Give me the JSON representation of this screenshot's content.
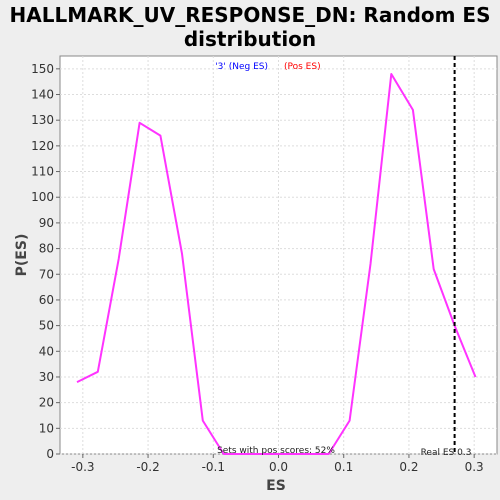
{
  "chart_data": {
    "type": "line",
    "title_line1": "HALLMARK_UV_RESPONSE_DN: Random ES",
    "title_line2": "distribution",
    "xlabel": "ES",
    "ylabel": "P(ES)",
    "xlim": [
      -0.335,
      0.335
    ],
    "ylim": [
      0,
      155
    ],
    "x_ticks": [
      -0.3,
      -0.2,
      -0.1,
      0.0,
      0.1,
      0.2,
      0.3
    ],
    "x_tick_labels": [
      "-0.3",
      "-0.2",
      "-0.1",
      "0.0",
      "0.1",
      "0.2",
      "0.3"
    ],
    "y_ticks": [
      0,
      10,
      20,
      30,
      40,
      50,
      60,
      70,
      80,
      90,
      100,
      110,
      120,
      130,
      140,
      150
    ],
    "y_tick_labels": [
      "0",
      "10",
      "20",
      "30",
      "40",
      "50",
      "60",
      "70",
      "80",
      "90",
      "100",
      "110",
      "120",
      "130",
      "140",
      "150"
    ],
    "grid": true,
    "legend": {
      "position": "top-center",
      "neg_label": "'3' (Neg ES)",
      "pos_label": "(Pos ES)",
      "neg_color": "#0000ff",
      "pos_color": "#ff0000"
    },
    "series": [
      {
        "color": "#ff33ff",
        "x": [
          -0.309,
          -0.277,
          -0.245,
          -0.213,
          -0.181,
          -0.148,
          -0.116,
          -0.084,
          -0.052,
          -0.02,
          0.012,
          0.045,
          0.077,
          0.109,
          0.141,
          0.173,
          0.206,
          0.238,
          0.27,
          0.302
        ],
        "y": [
          28,
          32,
          76,
          129,
          124,
          78,
          13,
          0,
          0,
          0,
          0,
          0,
          0,
          13,
          74,
          148,
          134,
          72,
          50,
          30
        ]
      }
    ],
    "real_es": {
      "value": 0.27,
      "color": "#000000",
      "label": "Real ES 0.3"
    },
    "annotation": "Sets with pos scores: 52%"
  }
}
